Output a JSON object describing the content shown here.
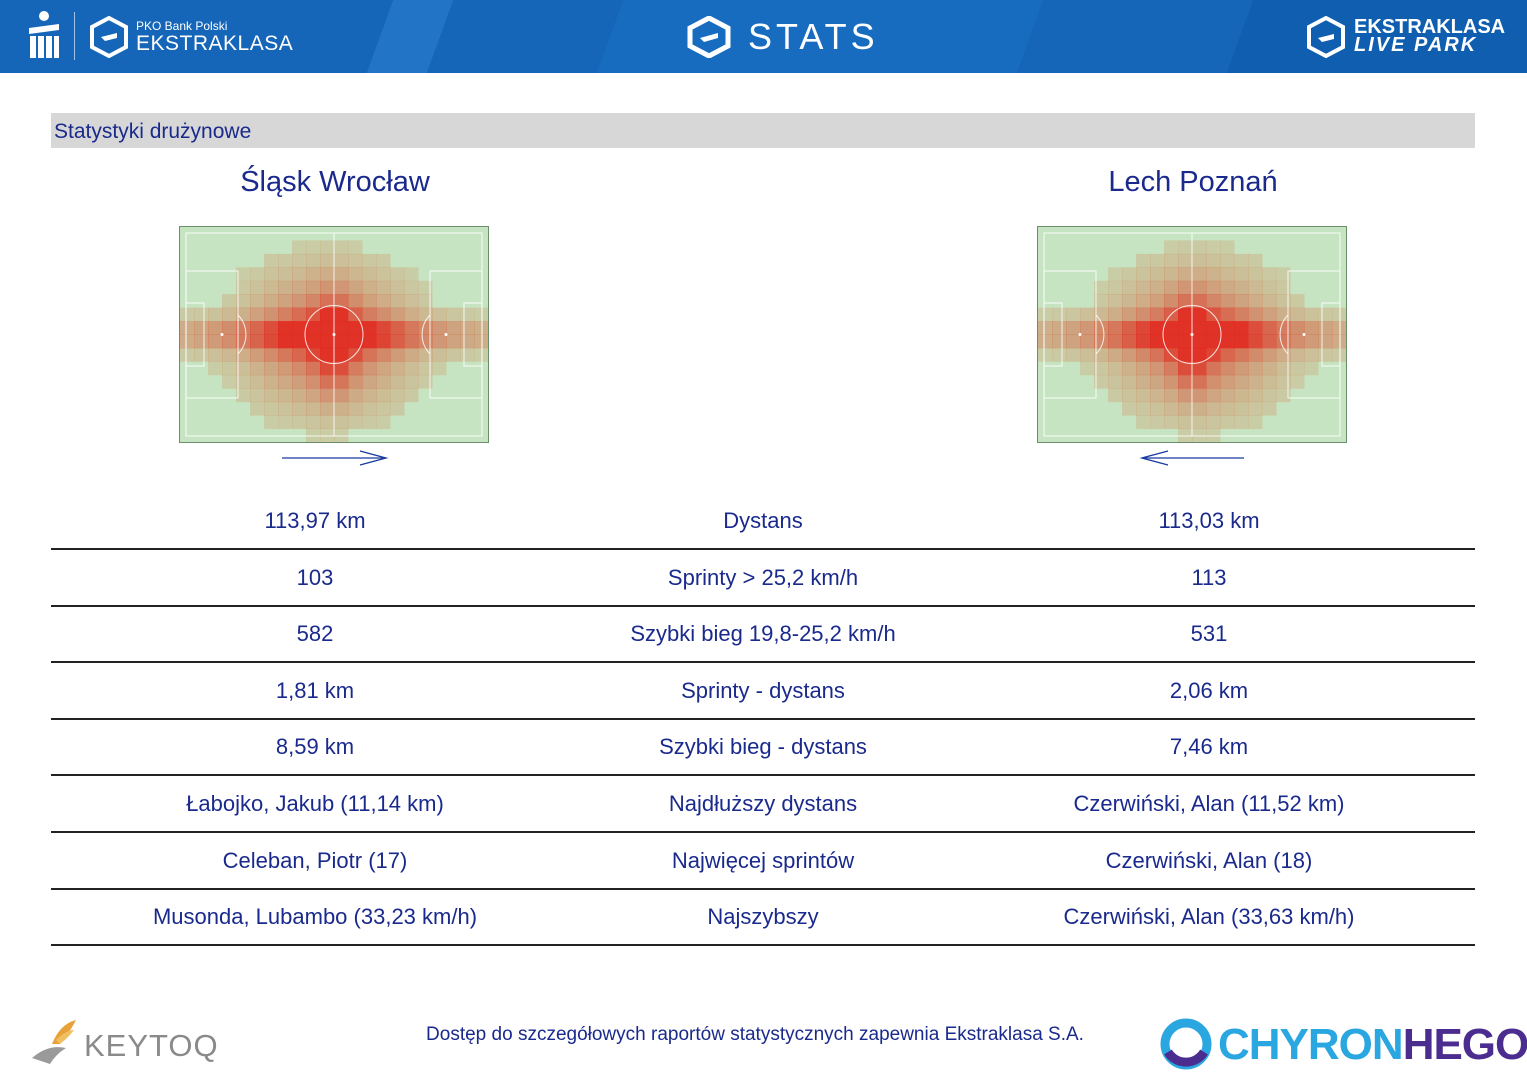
{
  "header": {
    "left_logo_small": "PKO Bank Polski",
    "left_logo_big": "EKSTRAKLASA",
    "center_title": "STATS",
    "right_logo_line1": "EKSTRAKLASA",
    "right_logo_line2": "LIVE PARK",
    "brand_color": "#1565b8"
  },
  "section_title": "Statystyki drużynowe",
  "teams": {
    "home": {
      "name": "Śląsk Wrocław",
      "direction": "right"
    },
    "away": {
      "name": "Lech Poznań",
      "direction": "left"
    }
  },
  "stats": [
    {
      "label": "Dystans",
      "home": "113,97 km",
      "away": "113,03 km"
    },
    {
      "label": "Sprinty > 25,2 km/h",
      "home": "103",
      "away": "113"
    },
    {
      "label": "Szybki bieg 19,8-25,2 km/h",
      "home": "582",
      "away": "531"
    },
    {
      "label": "Sprinty - dystans",
      "home": "1,81 km",
      "away": "2,06 km"
    },
    {
      "label": "Szybki bieg - dystans",
      "home": "8,59 km",
      "away": "7,46 km"
    },
    {
      "label": "Najdłuższy dystans",
      "home": "Łabojko, Jakub (11,14 km)",
      "away": "Czerwiński, Alan (11,52 km)"
    },
    {
      "label": "Najwięcej sprintów",
      "home": "Celeban, Piotr (17)",
      "away": "Czerwiński, Alan (18)"
    },
    {
      "label": "Najszybszy",
      "home": "Musonda, Lubambo (33,23 km/h)",
      "away": "Czerwiński, Alan (33,63 km/h)"
    }
  ],
  "footer": {
    "note": "Dostęp do szczegółowych raportów statystycznych zapewnia Ekstraklasa S.A.",
    "left_logo": "KEYTOQ",
    "right_logo_part1": "CHYRON",
    "right_logo_part2": "HEGO",
    "chyron_color": "#2aa7e0",
    "hego_color": "#4b2c8f"
  },
  "icons": {
    "pko": "pko-bank-logo-icon",
    "ekstraklasa": "ekstraklasa-e-logo-icon",
    "heatmap_arrow": "attack-direction-arrow-icon"
  }
}
